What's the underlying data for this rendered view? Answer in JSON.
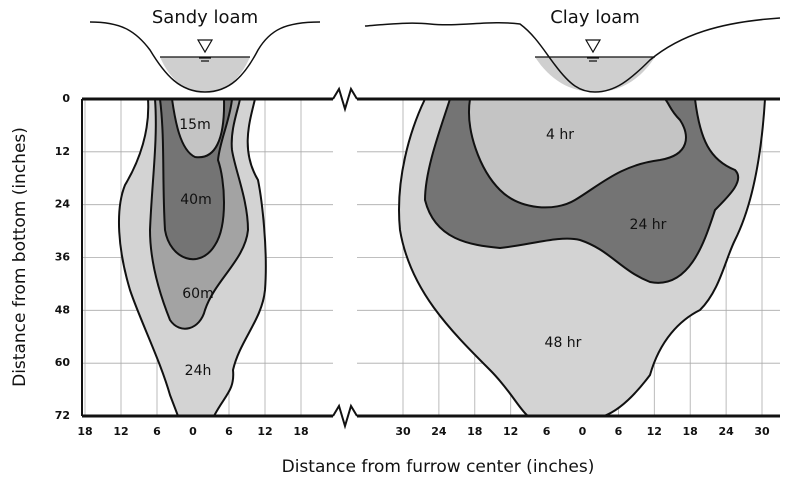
{
  "panels": [
    {
      "title": "Sandy loam",
      "zones": [
        "15m",
        "40m",
        "60m",
        "24h"
      ],
      "xticks": [
        18,
        12,
        6,
        0,
        6,
        12,
        18
      ]
    },
    {
      "title": "Clay loam",
      "zones": [
        "4 hr",
        "24 hr",
        "48 hr"
      ],
      "xticks": [
        30,
        24,
        18,
        12,
        6,
        0,
        6,
        12,
        18,
        24,
        30
      ]
    }
  ],
  "yticks": [
    0,
    12,
    24,
    36,
    48,
    60,
    72
  ],
  "ylabel": "Distance from bottom (inches)",
  "xlabel": "Distance from furrow center (inches)"
}
